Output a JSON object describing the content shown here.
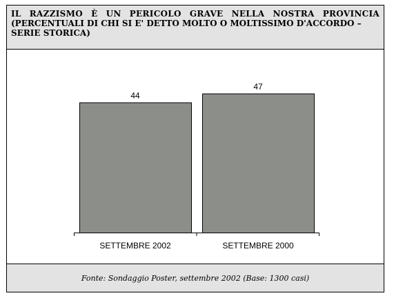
{
  "header": {
    "title": "IL RAZZISMO È UN PERICOLO GRAVE NELLA NOSTRA PROVINCIA",
    "subtitle": "(PERCENTUALI DI CHI SI E' DETTO MOLTO O MOLTISSIMO D'ACCORDO – SERIE STORICA)"
  },
  "footer": {
    "source": "Fonte: Sondaggio Poster, settembre 2002 (Base: 1300 casi)"
  },
  "colors": {
    "bar": "#8c8e8a",
    "panel": "#e3e3e3"
  },
  "chart_data": {
    "type": "bar",
    "title": "IL RAZZISMO È UN PERICOLO GRAVE NELLA NOSTRA PROVINCIA",
    "categories": [
      "SETTEMBRE 2002",
      "SETTEMBRE 2000"
    ],
    "values": [
      44,
      47
    ],
    "ylim": [
      0,
      50
    ],
    "grid": false,
    "data_labels": true
  }
}
